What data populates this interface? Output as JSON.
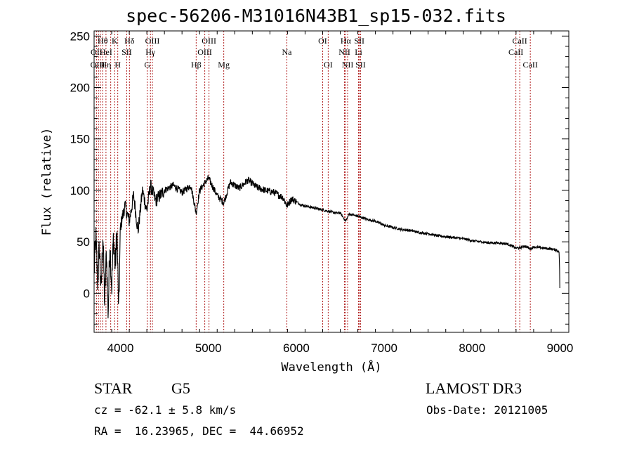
{
  "chart_data": {
    "type": "line",
    "title": "spec-56206-M31016N43B1_sp15-032.fits",
    "xlabel": "Wavelength (Å)",
    "ylabel": "Flux (relative)",
    "xlim": [
      3700,
      9100
    ],
    "ylim": [
      -38,
      255
    ],
    "x_ticks": [
      4000,
      5000,
      6000,
      7000,
      8000,
      9000
    ],
    "x_tick_labels": [
      "4000",
      "5000",
      "6000",
      "7000",
      "8000",
      "9000"
    ],
    "y_ticks": [
      0,
      50,
      100,
      150,
      200,
      250
    ],
    "y_tick_labels": [
      "0",
      "50",
      "100",
      "150",
      "200",
      "250"
    ],
    "grid": false,
    "series": [
      {
        "name": "spectrum",
        "x": [
          3700,
          3720,
          3740,
          3760,
          3780,
          3800,
          3820,
          3840,
          3860,
          3880,
          3900,
          3920,
          3940,
          3960,
          3980,
          4000,
          4050,
          4100,
          4150,
          4200,
          4250,
          4300,
          4340,
          4400,
          4500,
          4600,
          4700,
          4800,
          4861,
          4900,
          5000,
          5100,
          5175,
          5250,
          5350,
          5450,
          5550,
          5650,
          5750,
          5850,
          5893,
          5950,
          6050,
          6150,
          6250,
          6350,
          6450,
          6500,
          6563,
          6600,
          6650,
          6700,
          6800,
          6900,
          7000,
          7100,
          7200,
          7300,
          7400,
          7500,
          7600,
          7700,
          7800,
          7900,
          8000,
          8100,
          8200,
          8300,
          8400,
          8498,
          8542,
          8600,
          8662,
          8700,
          8800,
          8900,
          8960,
          8990,
          9000
        ],
        "y": [
          20,
          55,
          10,
          45,
          0,
          60,
          -10,
          40,
          -20,
          50,
          5,
          55,
          25,
          60,
          -20,
          65,
          85,
          70,
          95,
          60,
          100,
          80,
          105,
          90,
          100,
          105,
          98,
          105,
          78,
          100,
          112,
          95,
          88,
          108,
          102,
          110,
          103,
          100,
          98,
          93,
          85,
          92,
          86,
          84,
          82,
          80,
          78,
          78,
          70,
          77,
          76,
          75,
          72,
          70,
          66,
          64,
          62,
          61,
          59,
          58,
          56,
          55,
          54,
          53,
          51,
          50,
          49,
          49,
          48,
          44,
          44,
          46,
          43,
          45,
          44,
          43,
          42,
          40,
          5
        ]
      }
    ],
    "line_labels": [
      {
        "label": "Hθ",
        "wavelength": 3798,
        "row": 1
      },
      {
        "label": "OII",
        "wavelength": 3727,
        "row": 2
      },
      {
        "label": "OIII",
        "wavelength": 3740,
        "row": 3
      },
      {
        "label": "K",
        "wavelength": 3934,
        "row": 1
      },
      {
        "label": "HeI",
        "wavelength": 3835,
        "row": 2
      },
      {
        "label": "Hη",
        "wavelength": 3835,
        "row": 3
      },
      {
        "label": "Hδ",
        "wavelength": 4102,
        "row": 1
      },
      {
        "label": "SII",
        "wavelength": 4071,
        "row": 2
      },
      {
        "label": "H",
        "wavelength": 3969,
        "row": 3
      },
      {
        "label": "OIII",
        "wavelength": 4363,
        "row": 1
      },
      {
        "label": "Hγ",
        "wavelength": 4341,
        "row": 2
      },
      {
        "label": "G",
        "wavelength": 4305,
        "row": 3
      },
      {
        "label": "OIII",
        "wavelength": 5007,
        "row": 1
      },
      {
        "label": "OIII",
        "wavelength": 4959,
        "row": 2
      },
      {
        "label": "Hβ",
        "wavelength": 4861,
        "row": 3
      },
      {
        "label": "Mg",
        "wavelength": 5175,
        "row": 3
      },
      {
        "label": "Na",
        "wavelength": 5893,
        "row": 2
      },
      {
        "label": "OI",
        "wavelength": 6300,
        "row": 1
      },
      {
        "label": "OI",
        "wavelength": 6363,
        "row": 3
      },
      {
        "label": "Hα",
        "wavelength": 6563,
        "row": 1
      },
      {
        "label": "SII",
        "wavelength": 6717,
        "row": 1
      },
      {
        "label": "NII",
        "wavelength": 6548,
        "row": 2
      },
      {
        "label": "Li",
        "wavelength": 6708,
        "row": 2
      },
      {
        "label": "NII",
        "wavelength": 6584,
        "row": 3
      },
      {
        "label": "SII",
        "wavelength": 6731,
        "row": 3
      },
      {
        "label": "CaII",
        "wavelength": 8542,
        "row": 1
      },
      {
        "label": "CaII",
        "wavelength": 8498,
        "row": 2
      },
      {
        "label": "CaII",
        "wavelength": 8662,
        "row": 3
      }
    ],
    "line_marker_wavelengths": [
      3727,
      3750,
      3771,
      3798,
      3835,
      3889,
      3934,
      3969,
      4071,
      4102,
      4305,
      4341,
      4363,
      4861,
      4959,
      5007,
      5175,
      5893,
      6300,
      6363,
      6548,
      6563,
      6584,
      6708,
      6717,
      6731,
      8498,
      8542,
      8662
    ]
  },
  "info": {
    "object_class": "STAR",
    "subclass": "G5",
    "survey": "LAMOST DR3",
    "redshift_text": "cz = -62.1 ± 5.8 km/s",
    "obs_date_text": "Obs-Date: 20121005",
    "coords_text": "RA =  16.23965, DEC =  44.66952"
  },
  "colors": {
    "spectrum": "#000000",
    "line_markers": "#b22222",
    "axes": "#000000"
  }
}
